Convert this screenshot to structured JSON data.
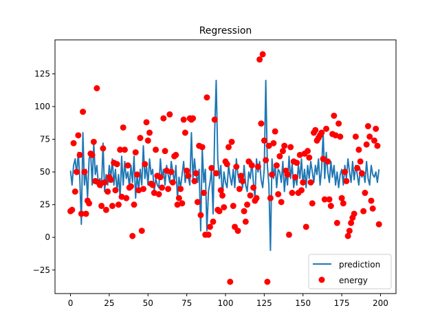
{
  "chart_data": {
    "type": "line",
    "title": "Regression",
    "xlabel": "",
    "ylabel": "",
    "xlim": [
      -10,
      210
    ],
    "ylim": [
      -43,
      151
    ],
    "xticks": [
      0,
      25,
      50,
      75,
      100,
      125,
      150,
      175,
      200
    ],
    "yticks": [
      -25,
      0,
      25,
      50,
      75,
      100,
      125
    ],
    "legend_position": "lower-right",
    "series": [
      {
        "name": "prediction",
        "kind": "line",
        "color": "#1f77b4",
        "x": [
          0,
          1,
          2,
          3,
          4,
          5,
          6,
          7,
          8,
          9,
          10,
          11,
          12,
          13,
          14,
          15,
          16,
          17,
          18,
          19,
          20,
          21,
          22,
          23,
          24,
          25,
          26,
          27,
          28,
          29,
          30,
          31,
          32,
          33,
          34,
          35,
          36,
          37,
          38,
          39,
          40,
          41,
          42,
          43,
          44,
          45,
          46,
          47,
          48,
          49,
          50,
          51,
          52,
          53,
          54,
          55,
          56,
          57,
          58,
          59,
          60,
          61,
          62,
          63,
          64,
          65,
          66,
          67,
          68,
          69,
          70,
          71,
          72,
          73,
          74,
          75,
          76,
          77,
          78,
          79,
          80,
          81,
          82,
          83,
          84,
          85,
          86,
          87,
          88,
          89,
          90,
          91,
          92,
          93,
          94,
          95,
          96,
          97,
          98,
          99,
          100,
          101,
          102,
          103,
          104,
          105,
          106,
          107,
          108,
          109,
          110,
          111,
          112,
          113,
          114,
          115,
          116,
          117,
          118,
          119,
          120,
          121,
          122,
          123,
          124,
          125,
          126,
          127,
          128,
          129,
          130,
          131,
          132,
          133,
          134,
          135,
          136,
          137,
          138,
          139,
          140,
          141,
          142,
          143,
          144,
          145,
          146,
          147,
          148,
          149,
          150,
          151,
          152,
          153,
          154,
          155,
          156,
          157,
          158,
          159,
          160,
          161,
          162,
          163,
          164,
          165,
          166,
          167,
          168,
          169,
          170,
          171,
          172,
          173,
          174,
          175,
          176,
          177,
          178,
          179,
          180,
          181,
          182,
          183,
          184,
          185,
          186,
          187,
          188,
          189,
          190,
          191,
          192,
          193,
          194,
          195,
          196,
          197,
          198,
          199
        ],
        "y": [
          51,
          40,
          55,
          60,
          48,
          65,
          45,
          10,
          80,
          40,
          52,
          30,
          60,
          65,
          40,
          72,
          48,
          55,
          40,
          45,
          38,
          72,
          35,
          48,
          40,
          55,
          45,
          60,
          40,
          52,
          35,
          48,
          30,
          62,
          40,
          58,
          45,
          50,
          38,
          55,
          42,
          62,
          30,
          48,
          36,
          52,
          40,
          70,
          45,
          55,
          40,
          60,
          48,
          52,
          35,
          45,
          40,
          38,
          60,
          45,
          52,
          40,
          55,
          48,
          42,
          58,
          50,
          42,
          55,
          30,
          46,
          38,
          48,
          58,
          42,
          50,
          46,
          40,
          80,
          45,
          60,
          48,
          42,
          52,
          5,
          68,
          42,
          52,
          5,
          35,
          42,
          52,
          18,
          80,
          120,
          60,
          45,
          55,
          30,
          50,
          42,
          38,
          55,
          46,
          40,
          52,
          38,
          60,
          48,
          42,
          46,
          38,
          55,
          40,
          35,
          50,
          45,
          58,
          42,
          30,
          60,
          50,
          58,
          44,
          38,
          52,
          120,
          55,
          40,
          -10,
          60,
          45,
          56,
          38,
          52,
          50,
          42,
          58,
          35,
          50,
          40,
          62,
          45,
          56,
          38,
          48,
          40,
          55,
          45,
          60,
          40,
          52,
          38,
          55,
          45,
          58,
          50,
          42,
          55,
          48,
          60,
          40,
          52,
          80,
          45,
          65,
          50,
          42,
          58,
          46,
          55,
          40,
          50,
          38,
          48,
          52,
          40,
          55,
          45,
          60,
          50,
          42,
          58,
          44,
          55,
          48,
          40,
          52,
          46,
          50,
          42,
          58,
          45,
          40,
          55,
          48,
          46,
          50,
          42,
          52
        ]
      },
      {
        "name": "energy",
        "kind": "scatter",
        "color": "#ff0000",
        "x": [
          0,
          1,
          2,
          3,
          4,
          5,
          6,
          7,
          8,
          9,
          10,
          11,
          12,
          13,
          14,
          15,
          16,
          17,
          18,
          19,
          20,
          21,
          22,
          23,
          24,
          25,
          26,
          27,
          28,
          29,
          30,
          31,
          32,
          33,
          34,
          35,
          36,
          37,
          38,
          39,
          40,
          41,
          42,
          43,
          44,
          45,
          46,
          47,
          48,
          49,
          50,
          51,
          52,
          53,
          54,
          55,
          56,
          57,
          58,
          59,
          60,
          61,
          62,
          63,
          64,
          65,
          66,
          67,
          68,
          69,
          70,
          71,
          72,
          73,
          74,
          75,
          76,
          77,
          78,
          79,
          80,
          81,
          82,
          83,
          84,
          85,
          86,
          87,
          88,
          89,
          90,
          91,
          92,
          93,
          94,
          95,
          96,
          97,
          98,
          99,
          100,
          101,
          102,
          103,
          104,
          105,
          106,
          107,
          108,
          109,
          110,
          111,
          112,
          113,
          114,
          115,
          116,
          117,
          118,
          119,
          120,
          121,
          122,
          123,
          124,
          125,
          126,
          127,
          128,
          129,
          130,
          131,
          132,
          133,
          134,
          135,
          136,
          137,
          138,
          139,
          140,
          141,
          142,
          143,
          144,
          145,
          146,
          147,
          148,
          149,
          150,
          151,
          152,
          153,
          154,
          155,
          156,
          157,
          158,
          159,
          160,
          161,
          162,
          163,
          164,
          165,
          166,
          167,
          168,
          169,
          170,
          171,
          172,
          173,
          174,
          175,
          176,
          177,
          178,
          179,
          180,
          181,
          182,
          183,
          184,
          185,
          186,
          187,
          188,
          189,
          190,
          191,
          192,
          193,
          194,
          195,
          196,
          197,
          198,
          199
        ],
        "y": [
          20,
          21,
          72,
          35,
          50,
          78,
          63,
          18,
          96,
          50,
          18,
          28,
          26,
          64,
          63,
          73,
          43,
          114,
          42,
          40,
          24,
          68,
          42,
          21,
          35,
          46,
          44,
          24,
          57,
          36,
          56,
          25,
          67,
          31,
          84,
          67,
          30,
          55,
          38,
          39,
          1,
          25,
          65,
          48,
          36,
          76,
          5,
          37,
          56,
          88,
          74,
          80,
          41,
          40,
          34,
          67,
          47,
          33,
          46,
          38,
          91,
          66,
          51,
          37,
          94,
          50,
          42,
          62,
          63,
          25,
          30,
          37,
          26,
          90,
          80,
          51,
          47,
          91,
          90,
          91,
          43,
          49,
          27,
          70,
          17,
          69,
          34,
          2,
          107,
          2,
          8,
          53,
          12,
          90,
          49,
          21,
          20,
          36,
          32,
          23,
          58,
          56,
          69,
          -34,
          73,
          24,
          8,
          54,
          5,
          37,
          47,
          43,
          20,
          12,
          25,
          58,
          32,
          55,
          38,
          28,
          30,
          54,
          136,
          87,
          140,
          74,
          59,
          -34,
          70,
          30,
          48,
          72,
          81,
          55,
          33,
          62,
          27,
          66,
          70,
          51,
          48,
          2,
          69,
          34,
          58,
          46,
          57,
          34,
          63,
          36,
          42,
          64,
          8,
          66,
          61,
          42,
          26,
          80,
          82,
          74,
          76,
          78,
          80,
          60,
          29,
          83,
          58,
          29,
          24,
          79,
          93,
          78,
          11,
          87,
          77,
          30,
          26,
          50,
          43,
          1,
          5,
          11,
          15,
          18,
          77,
          53,
          67,
          58,
          49,
          20,
          34,
          71,
          85,
          77,
          28,
          22,
          74,
          83,
          70,
          10
        ]
      }
    ]
  }
}
